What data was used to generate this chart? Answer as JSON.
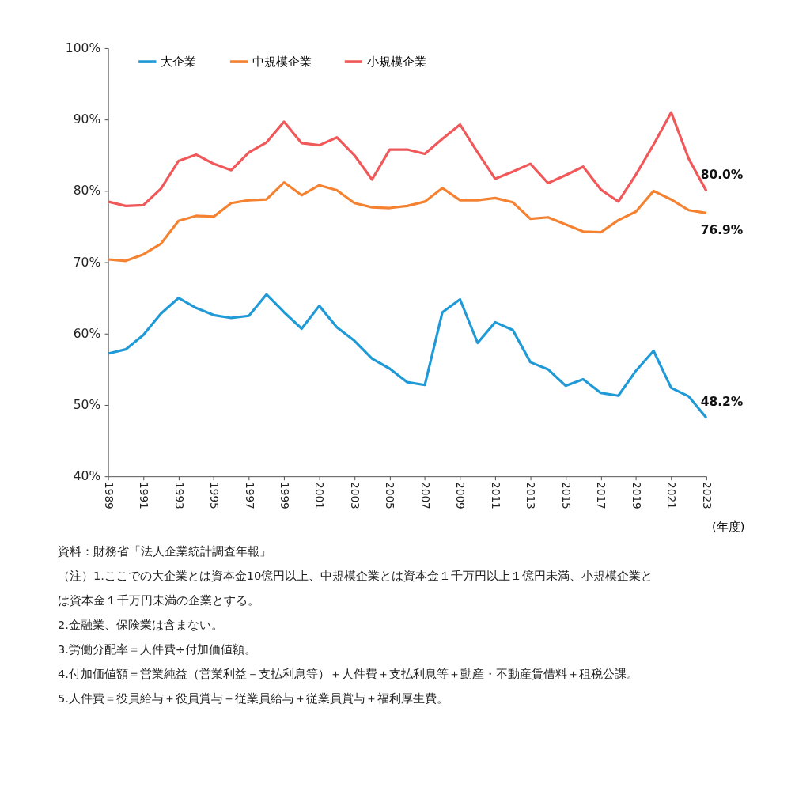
{
  "chart_data": {
    "type": "line",
    "x": [
      1989,
      1990,
      1991,
      1992,
      1993,
      1994,
      1995,
      1996,
      1997,
      1998,
      1999,
      2000,
      2001,
      2002,
      2003,
      2004,
      2005,
      2006,
      2007,
      2008,
      2009,
      2010,
      2011,
      2012,
      2013,
      2014,
      2015,
      2016,
      2017,
      2018,
      2019,
      2020,
      2021,
      2022,
      2023
    ],
    "series": [
      {
        "name": "大企業",
        "color": "#1f9ad6",
        "values": [
          57.2,
          57.8,
          59.8,
          62.8,
          65.0,
          63.6,
          62.6,
          62.2,
          62.5,
          65.5,
          63.0,
          60.7,
          63.9,
          60.9,
          59.0,
          56.5,
          55.1,
          53.2,
          52.8,
          63.0,
          64.8,
          58.7,
          61.6,
          60.5,
          56.0,
          55.0,
          52.7,
          53.6,
          51.7,
          51.3,
          54.8,
          57.6,
          52.4,
          51.2,
          48.2
        ],
        "value_labels": [
          null,
          null,
          null,
          null,
          null,
          null,
          null,
          null,
          null,
          null,
          null,
          null,
          null,
          null,
          null,
          null,
          null,
          null,
          null,
          null,
          null,
          null,
          null,
          null,
          null,
          null,
          null,
          null,
          null,
          null,
          null,
          null,
          null,
          null,
          "48.2%"
        ]
      },
      {
        "name": "中規模企業",
        "color": "#f58231",
        "values": [
          70.4,
          70.2,
          71.1,
          72.6,
          75.8,
          76.5,
          76.4,
          78.3,
          78.7,
          78.8,
          81.2,
          79.4,
          80.8,
          80.1,
          78.3,
          77.7,
          77.6,
          77.9,
          78.5,
          80.4,
          78.7,
          78.7,
          79.0,
          78.4,
          76.1,
          76.3,
          75.3,
          74.3,
          74.2,
          75.9,
          77.1,
          80.0,
          78.8,
          77.3,
          76.9
        ],
        "value_labels": [
          null,
          null,
          null,
          null,
          null,
          null,
          null,
          null,
          null,
          null,
          null,
          null,
          null,
          null,
          null,
          null,
          null,
          null,
          null,
          null,
          null,
          null,
          null,
          null,
          null,
          null,
          null,
          null,
          null,
          null,
          null,
          null,
          null,
          null,
          "76.9%"
        ]
      },
      {
        "name": "小規模企業",
        "color": "#f0585a",
        "values": [
          78.5,
          77.9,
          78.0,
          80.3,
          84.2,
          85.1,
          83.8,
          82.9,
          85.4,
          86.8,
          89.7,
          86.7,
          86.4,
          87.5,
          85.0,
          81.6,
          85.8,
          85.8,
          85.2,
          87.3,
          89.3,
          85.4,
          81.7,
          82.7,
          83.8,
          81.1,
          82.2,
          83.4,
          80.2,
          78.5,
          82.3,
          86.5,
          91.0,
          84.5,
          80.0
        ],
        "value_labels": [
          null,
          null,
          null,
          null,
          null,
          null,
          null,
          null,
          null,
          null,
          null,
          null,
          null,
          null,
          null,
          null,
          null,
          null,
          null,
          null,
          null,
          null,
          null,
          null,
          null,
          null,
          null,
          null,
          null,
          null,
          null,
          null,
          null,
          null,
          "80.0%"
        ]
      }
    ],
    "xlabel": "(年度)",
    "xlim": [
      1989,
      2023
    ],
    "xticks": [
      1989,
      1991,
      1993,
      1995,
      1997,
      1999,
      2001,
      2003,
      2005,
      2007,
      2009,
      2011,
      2013,
      2015,
      2017,
      2019,
      2021,
      2023
    ],
    "ylim": [
      40,
      100
    ],
    "yticks": [
      {
        "value": 40,
        "label": "40%"
      },
      {
        "value": 50,
        "label": "50%"
      },
      {
        "value": 60,
        "label": "60%"
      },
      {
        "value": 70,
        "label": "70%"
      },
      {
        "value": 80,
        "label": "80%"
      },
      {
        "value": 90,
        "label": "90%"
      },
      {
        "value": 100,
        "label": "100%"
      }
    ],
    "grid": false,
    "legend": "top left",
    "marker": "none",
    "line_style": "solid",
    "annotations": [
      "資料：財務省「法人企業統計調査年報」",
      "（注）1.ここでの大企業とは資本金10億円以上、中規模企業とは資本金１千万円以上１億円未満、小規模企業とは資本金１千万円未満の企業とする。",
      "2.金融業、保険業は含まない。",
      "3.労働分配率＝人件費÷付加価値額。",
      "4.付加価値額＝営業純益（営業利益－支払利息等）＋人件費＋支払利息等＋動産・不動産賃借料＋租税公課。",
      "5.人件費＝役員給与＋役員賞与＋従業員給与＋従業員賞与＋福利厚生費。"
    ]
  }
}
